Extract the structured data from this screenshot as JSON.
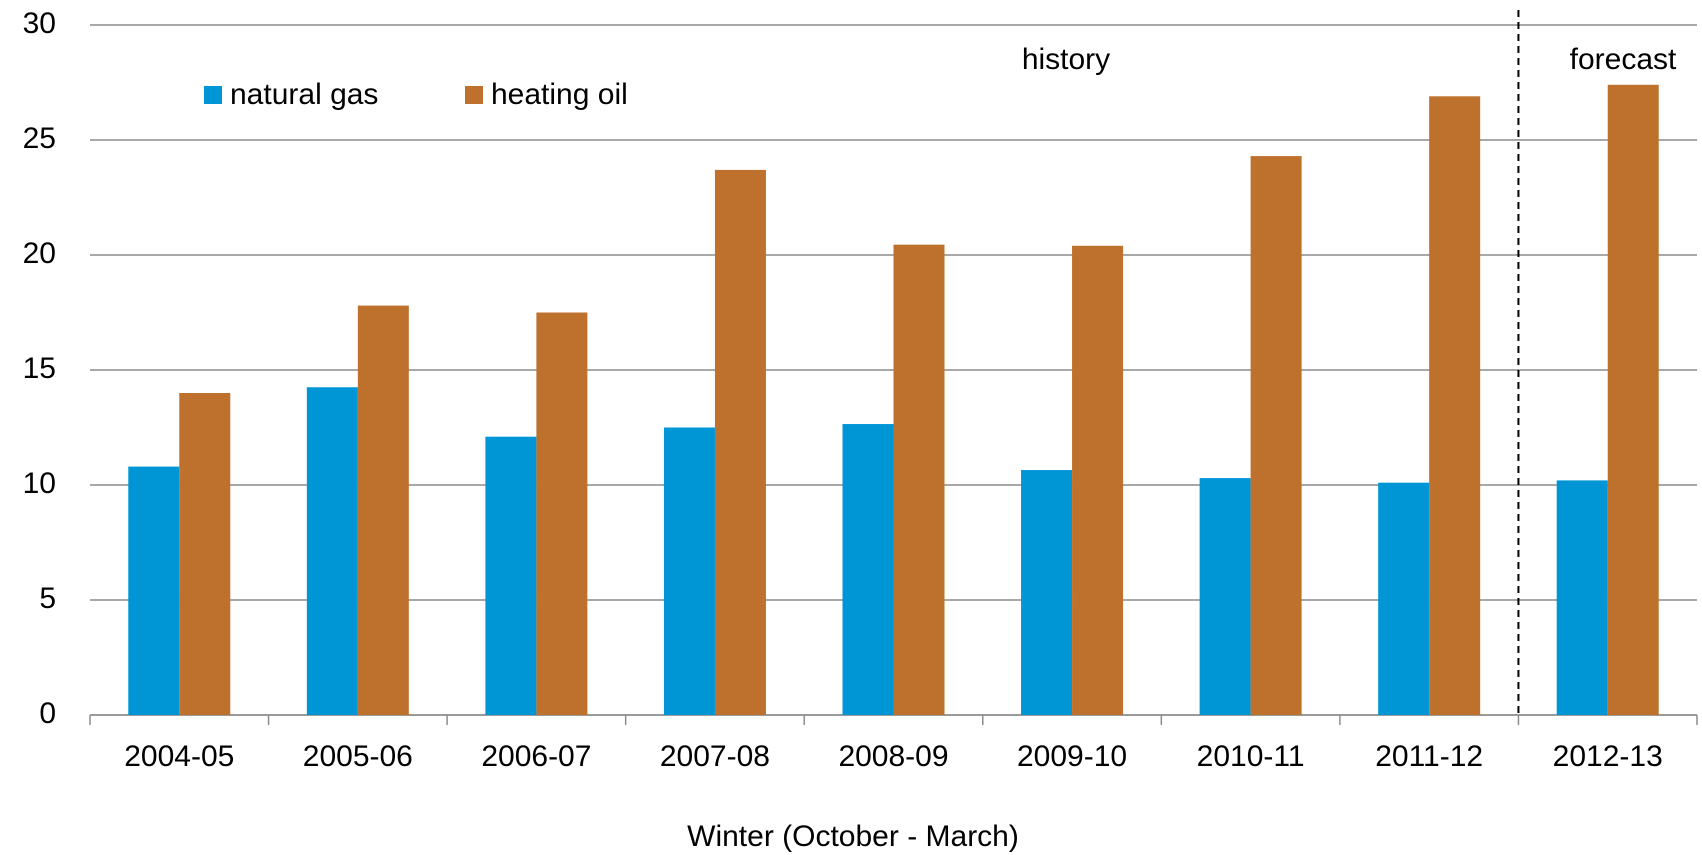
{
  "chart_data": {
    "type": "bar",
    "x_label": "Winter (October - March)",
    "categories": [
      "2004-05",
      "2005-06",
      "2006-07",
      "2007-08",
      "2008-09",
      "2009-10",
      "2010-11",
      "2011-12",
      "2012-13"
    ],
    "series": [
      {
        "name": "natural gas",
        "color": "#0096d6",
        "values": [
          10.8,
          14.25,
          12.1,
          12.5,
          12.65,
          10.65,
          10.3,
          10.1,
          10.2
        ]
      },
      {
        "name": "heating oil",
        "color": "#bd712d",
        "values": [
          14.0,
          17.8,
          17.5,
          23.7,
          20.45,
          20.4,
          24.3,
          26.9,
          27.4
        ]
      }
    ],
    "annotations": [
      "history",
      "forecast"
    ],
    "ylim": [
      0,
      30
    ],
    "yticks": [
      0,
      5,
      10,
      15,
      20,
      25,
      30
    ],
    "grid": true
  }
}
